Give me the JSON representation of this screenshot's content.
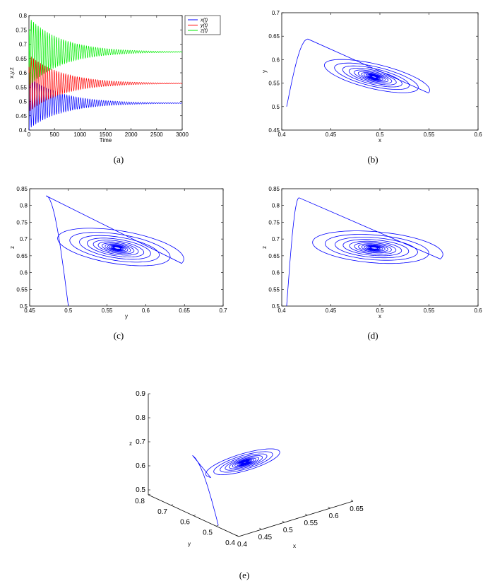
{
  "chart_data": [
    {
      "id": "a",
      "type": "line",
      "caption": "(a)",
      "xlabel": "Time",
      "ylabel": "x,y,z",
      "xlim": [
        0,
        3000
      ],
      "ylim": [
        0.4,
        0.8
      ],
      "xticks": [
        "0",
        "500",
        "1000",
        "1500",
        "2000",
        "2500",
        "3000"
      ],
      "yticks": [
        "0.4",
        "0.45",
        "0.5",
        "0.55",
        "0.6",
        "0.65",
        "0.7",
        "0.75",
        "0.8"
      ],
      "legend_position": "top-right",
      "series": [
        {
          "name": "x(t)",
          "color": "#0000ff",
          "x_start": 0,
          "x_end": 3000,
          "initial": 0.405,
          "equilibrium": 0.494,
          "amplitude": 0.09,
          "decay_time": 650,
          "period": 45
        },
        {
          "name": "y(t)",
          "color": "#ff0000",
          "x_start": 0,
          "x_end": 3000,
          "initial": 0.5,
          "equilibrium": 0.563,
          "amplitude": 0.1,
          "decay_time": 650,
          "period": 45
        },
        {
          "name": "z(t)",
          "color": "#00ee00",
          "x_start": 0,
          "x_end": 3000,
          "initial": 0.5,
          "equilibrium": 0.673,
          "amplitude": 0.12,
          "decay_time": 650,
          "period": 45
        }
      ]
    },
    {
      "id": "b",
      "type": "line",
      "caption": "(b)",
      "xlabel": "x",
      "ylabel": "y",
      "xlim": [
        0.4,
        0.6
      ],
      "ylim": [
        0.45,
        0.7
      ],
      "xticks": [
        "0.4",
        "0.45",
        "0.5",
        "0.55",
        "0.6"
      ],
      "yticks": [
        "0.45",
        "0.5",
        "0.55",
        "0.6",
        "0.65",
        "0.7"
      ],
      "series": [
        {
          "color": "#0000ff",
          "center": [
            0.494,
            0.563
          ],
          "start": [
            0.405,
            0.5
          ]
        }
      ]
    },
    {
      "id": "c",
      "type": "line",
      "caption": "(c)",
      "xlabel": "y",
      "ylabel": "z",
      "xlim": [
        0.45,
        0.7
      ],
      "ylim": [
        0.5,
        0.85
      ],
      "xticks": [
        "0.45",
        "0.5",
        "0.55",
        "0.6",
        "0.65",
        "0.7"
      ],
      "yticks": [
        "0.5",
        "0.55",
        "0.6",
        "0.65",
        "0.7",
        "0.75",
        "0.8",
        "0.85"
      ],
      "series": [
        {
          "color": "#0000ff",
          "center": [
            0.563,
            0.673
          ],
          "start": [
            0.5,
            0.5
          ]
        }
      ]
    },
    {
      "id": "d",
      "type": "line",
      "caption": "(d)",
      "xlabel": "x",
      "ylabel": "z",
      "xlim": [
        0.4,
        0.6
      ],
      "ylim": [
        0.5,
        0.85
      ],
      "xticks": [
        "0.4",
        "0.45",
        "0.5",
        "0.55",
        "0.6"
      ],
      "yticks": [
        "0.5",
        "0.55",
        "0.6",
        "0.65",
        "0.7",
        "0.75",
        "0.8",
        "0.85"
      ],
      "series": [
        {
          "color": "#0000ff",
          "center": [
            0.494,
            0.673
          ],
          "start": [
            0.405,
            0.5
          ]
        }
      ]
    },
    {
      "id": "e",
      "type": "line",
      "caption": "(e)",
      "xlabel": "x",
      "ylabel": "y",
      "zlabel": "z",
      "xlim": [
        0.4,
        0.65
      ],
      "ylim": [
        0.4,
        0.8
      ],
      "zlim": [
        0.5,
        0.9
      ],
      "xticks": [
        "0.4",
        "0.45",
        "0.5",
        "0.55",
        "0.6",
        "0.65"
      ],
      "yticks": [
        "0.4",
        "0.5",
        "0.6",
        "0.7",
        "0.8"
      ],
      "zticks": [
        "0.5",
        "0.6",
        "0.7",
        "0.8",
        "0.9"
      ],
      "series": [
        {
          "color": "#0000ff",
          "center": [
            0.494,
            0.563,
            0.673
          ],
          "start": [
            0.405,
            0.5,
            0.5
          ]
        }
      ]
    }
  ]
}
